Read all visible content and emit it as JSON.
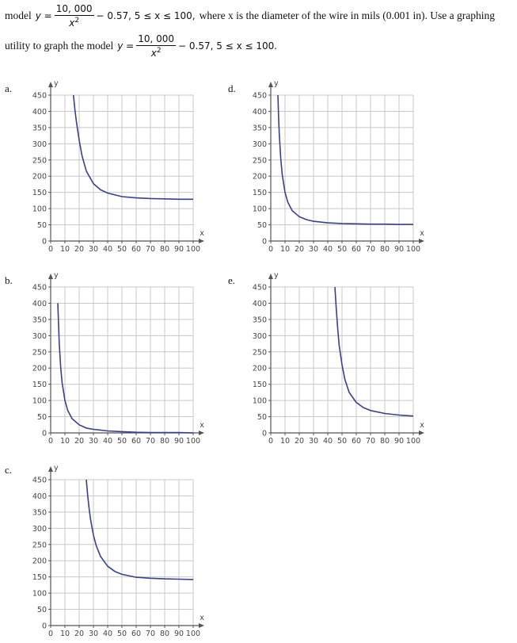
{
  "problem": {
    "line1": {
      "prefix": "model",
      "y_eq": "y =",
      "numerator": "10, 000",
      "denominator_var": "x",
      "denominator_exp": "2",
      "tail": "− 0.57,  5 ≤ x ≤ 100,",
      "text": "where x is the diameter of the wire in mils (0.001 in). Use a graphing"
    },
    "line2": {
      "prefix": "utility to graph the model",
      "y_eq": "y =",
      "numerator": "10, 000",
      "denominator_var": "x",
      "denominator_exp": "2",
      "tail": "− 0.57,  5 ≤ x ≤ 100."
    }
  },
  "colors": {
    "curve": "#3a3f8f",
    "grid": "#c8c8c8",
    "axis": "#555555"
  },
  "chart_data": [
    {
      "label": "a.",
      "type": "line",
      "xlabel": "x",
      "ylabel": "y",
      "xlim": [
        0,
        100
      ],
      "ylim": [
        0,
        450
      ],
      "xticks": [
        0,
        10,
        20,
        30,
        40,
        50,
        60,
        70,
        80,
        90,
        100
      ],
      "yticks": [
        0,
        50,
        100,
        150,
        200,
        250,
        300,
        350,
        400,
        450
      ],
      "grid": true,
      "x": [
        16,
        17,
        18,
        20,
        22,
        25,
        30,
        35,
        40,
        50,
        60,
        70,
        80,
        90,
        100
      ],
      "y": [
        450,
        405,
        370,
        311,
        263,
        216,
        177,
        158,
        148,
        137,
        133,
        131,
        130,
        129,
        129
      ]
    },
    {
      "label": "b.",
      "type": "line",
      "xlabel": "x",
      "ylabel": "y",
      "xlim": [
        0,
        100
      ],
      "ylim": [
        0,
        450
      ],
      "xticks": [
        0,
        10,
        20,
        30,
        40,
        50,
        60,
        70,
        80,
        90,
        100
      ],
      "yticks": [
        0,
        50,
        100,
        150,
        200,
        250,
        300,
        350,
        400,
        450
      ],
      "grid": true,
      "x": [
        5,
        6,
        7,
        8,
        10,
        12,
        15,
        20,
        25,
        30,
        40,
        50,
        60,
        70,
        80,
        90,
        100
      ],
      "y": [
        400,
        278,
        204,
        156,
        100,
        69,
        44,
        25,
        15,
        11,
        6,
        4,
        2,
        1,
        1,
        1,
        0
      ]
    },
    {
      "label": "c.",
      "type": "line",
      "xlabel": "x",
      "ylabel": "y",
      "xlim": [
        0,
        100
      ],
      "ylim": [
        0,
        450
      ],
      "xticks": [
        0,
        10,
        20,
        30,
        40,
        50,
        60,
        70,
        80,
        90,
        100
      ],
      "yticks": [
        0,
        50,
        100,
        150,
        200,
        250,
        300,
        350,
        400,
        450
      ],
      "grid": true,
      "x": [
        25,
        26,
        27,
        28,
        30,
        32,
        35,
        40,
        45,
        50,
        60,
        70,
        80,
        90,
        100
      ],
      "y": [
        450,
        400,
        360,
        327,
        279,
        246,
        213,
        183,
        167,
        158,
        149,
        146,
        144,
        143,
        142
      ]
    },
    {
      "label": "d.",
      "type": "line",
      "xlabel": "x",
      "ylabel": "y",
      "xlim": [
        0,
        100
      ],
      "ylim": [
        0,
        450
      ],
      "xticks": [
        0,
        10,
        20,
        30,
        40,
        50,
        60,
        70,
        80,
        90,
        100
      ],
      "yticks": [
        0,
        50,
        100,
        150,
        200,
        250,
        300,
        350,
        400,
        450
      ],
      "grid": true,
      "x": [
        5,
        5.5,
        6,
        7,
        8,
        10,
        12,
        15,
        20,
        25,
        30,
        40,
        50,
        60,
        70,
        80,
        90,
        100
      ],
      "y": [
        450,
        380,
        328,
        254,
        206,
        150,
        119,
        94,
        75,
        66,
        61,
        56,
        54,
        53,
        52,
        52,
        51,
        51
      ]
    },
    {
      "label": "e.",
      "type": "line",
      "xlabel": "x",
      "ylabel": "y",
      "xlim": [
        0,
        100
      ],
      "ylim": [
        0,
        450
      ],
      "xticks": [
        0,
        10,
        20,
        30,
        40,
        50,
        60,
        70,
        80,
        90,
        100
      ],
      "yticks": [
        0,
        50,
        100,
        150,
        200,
        250,
        300,
        350,
        400,
        450
      ],
      "grid": true,
      "x": [
        45,
        46,
        47,
        48,
        50,
        52,
        55,
        60,
        65,
        70,
        80,
        90,
        100
      ],
      "y": [
        450,
        380,
        320,
        270,
        210,
        165,
        125,
        94,
        78,
        69,
        60,
        55,
        52
      ]
    }
  ]
}
